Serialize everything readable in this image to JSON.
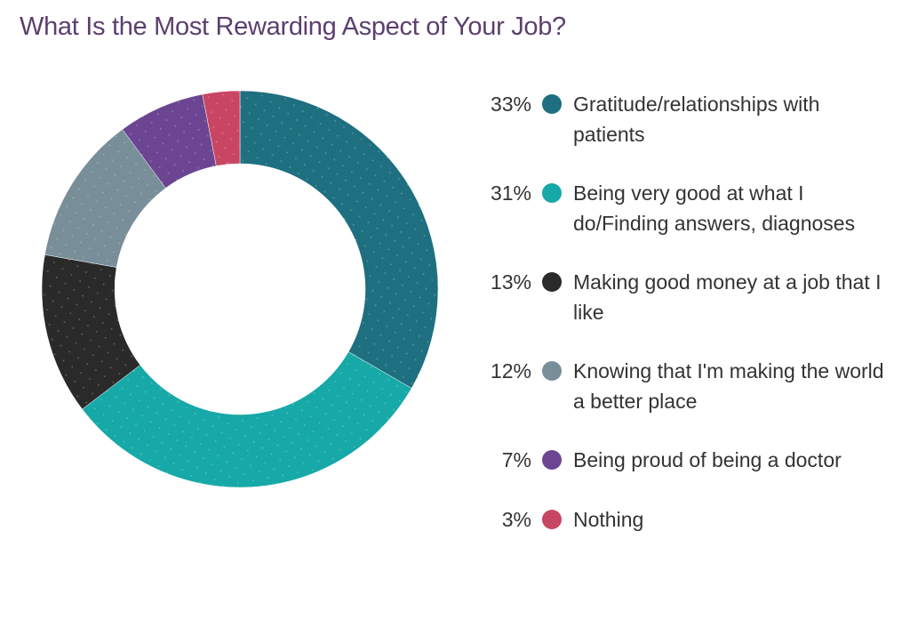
{
  "chart_data": {
    "type": "pie",
    "title": "What Is the Most Rewarding Aspect of Your Job?",
    "donut": true,
    "legend_position": "right",
    "slices": [
      {
        "label": "Gratitude/relationships with patients",
        "value": 33,
        "value_label": "33%",
        "color": "#1e6f7f"
      },
      {
        "label": "Being very good at what I do/Finding answers, diagnoses",
        "value": 31,
        "value_label": "31%",
        "color": "#17a8a8"
      },
      {
        "label": "Making good money at a job that I like",
        "value": 13,
        "value_label": "13%",
        "color": "#2a2a2a"
      },
      {
        "label": "Knowing that I'm making the world a better place",
        "value": 12,
        "value_label": "12%",
        "color": "#788e98"
      },
      {
        "label": "Being proud of being a doctor",
        "value": 7,
        "value_label": "7%",
        "color": "#6b4592"
      },
      {
        "label": "Nothing",
        "value": 3,
        "value_label": "3%",
        "color": "#c94663"
      }
    ]
  }
}
